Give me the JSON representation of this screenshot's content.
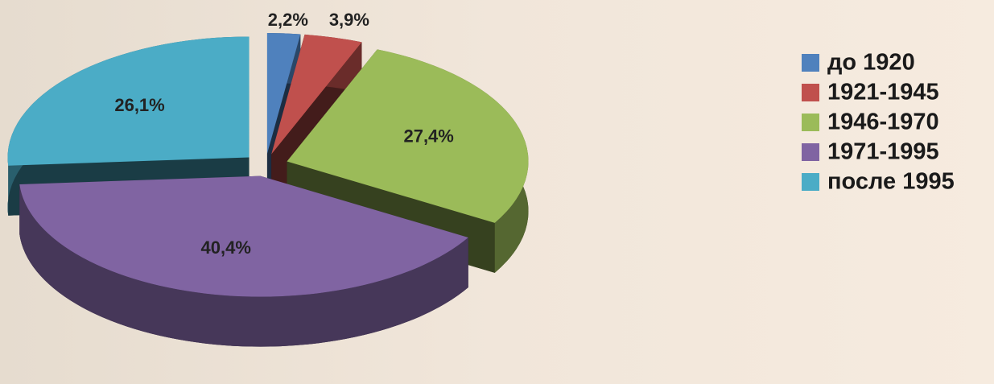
{
  "chart_data": {
    "type": "pie3d",
    "categories": [
      "до 1920",
      "1921-1945",
      "1946-1970",
      "1971-1995",
      "после 1995"
    ],
    "values": [
      2.2,
      3.9,
      27.4,
      40.4,
      26.1
    ],
    "value_labels": [
      "2,2%",
      "3,9%",
      "27,4%",
      "40,4%",
      "26,1%"
    ],
    "colors": [
      "#4f81bd",
      "#c0504d",
      "#9bbb59",
      "#8064a2",
      "#4bacc6"
    ],
    "legend": "right"
  }
}
